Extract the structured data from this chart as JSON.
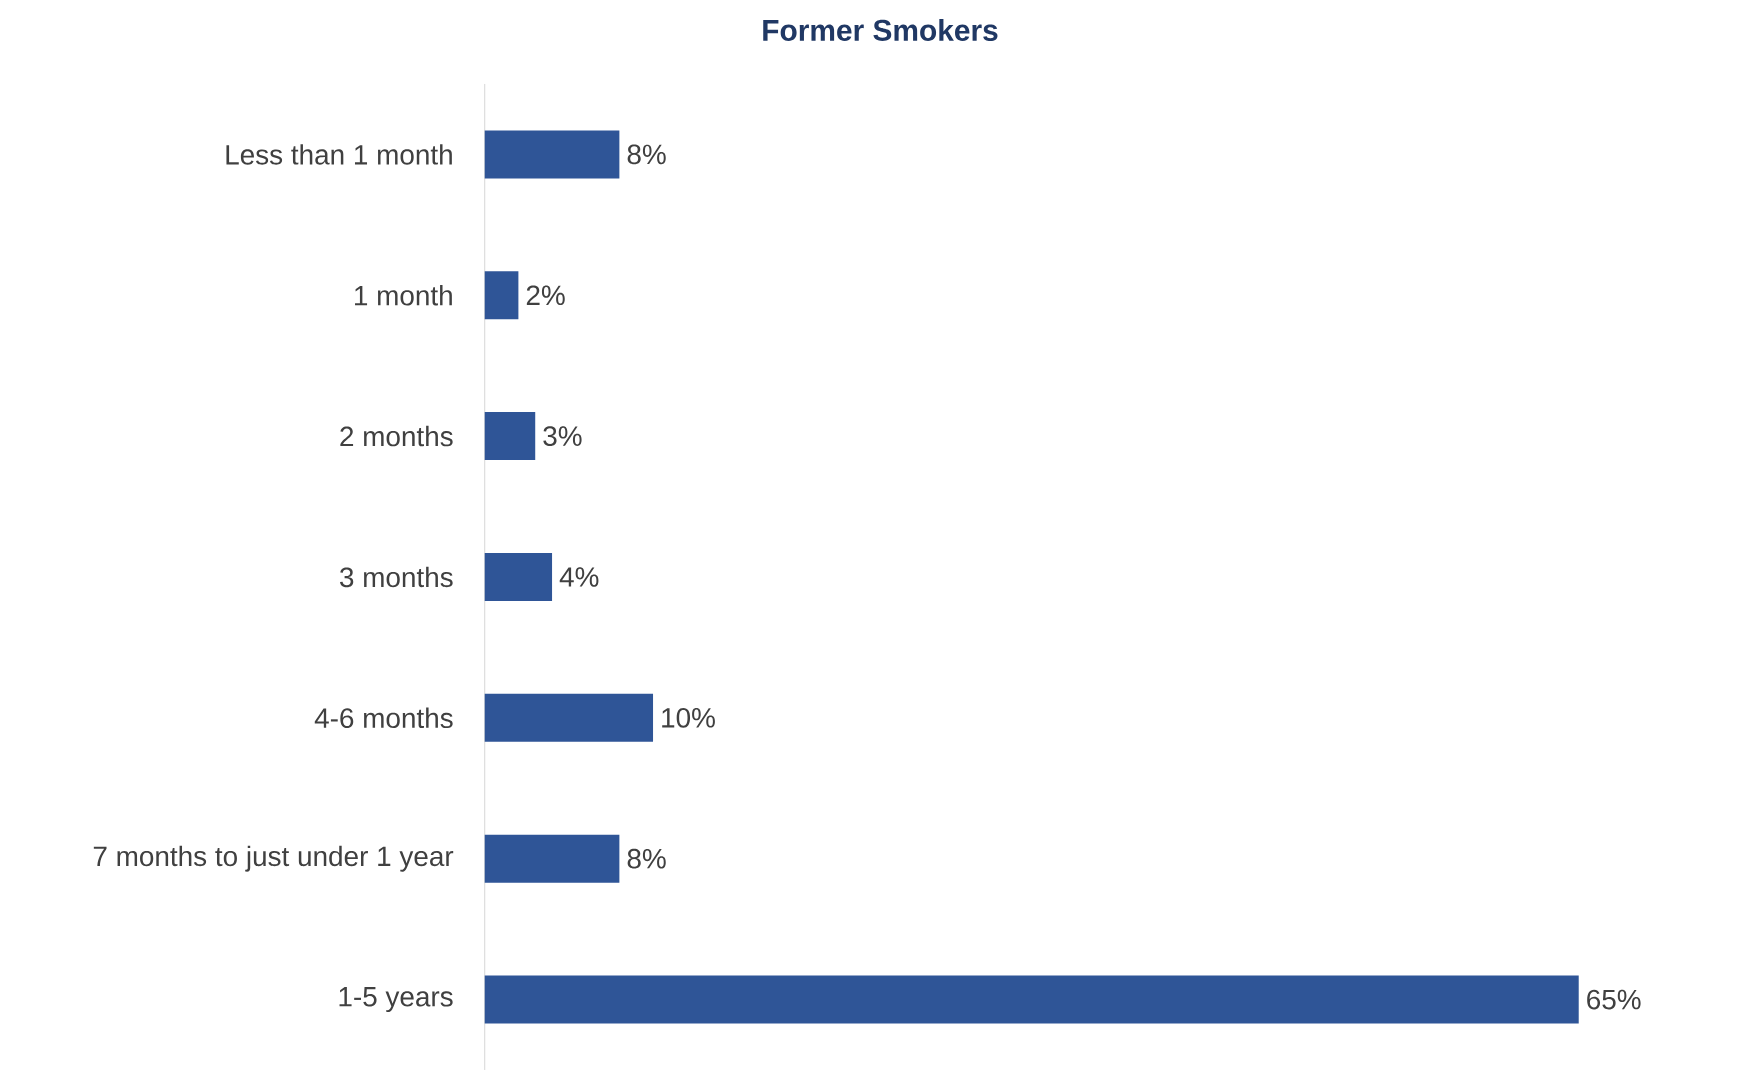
{
  "chart_data": {
    "type": "bar",
    "orientation": "horizontal",
    "title": "Former Smokers",
    "categories": [
      "Less than 1 month",
      "1 month",
      "2 months",
      "3 months",
      "4-6 months",
      "7 months to just under 1 year",
      "1-5 years"
    ],
    "values": [
      8,
      2,
      3,
      4,
      10,
      8,
      65
    ],
    "value_labels": [
      "8%",
      "2%",
      "3%",
      "4%",
      "10%",
      "8%",
      "65%"
    ],
    "color": "#2f5597"
  }
}
